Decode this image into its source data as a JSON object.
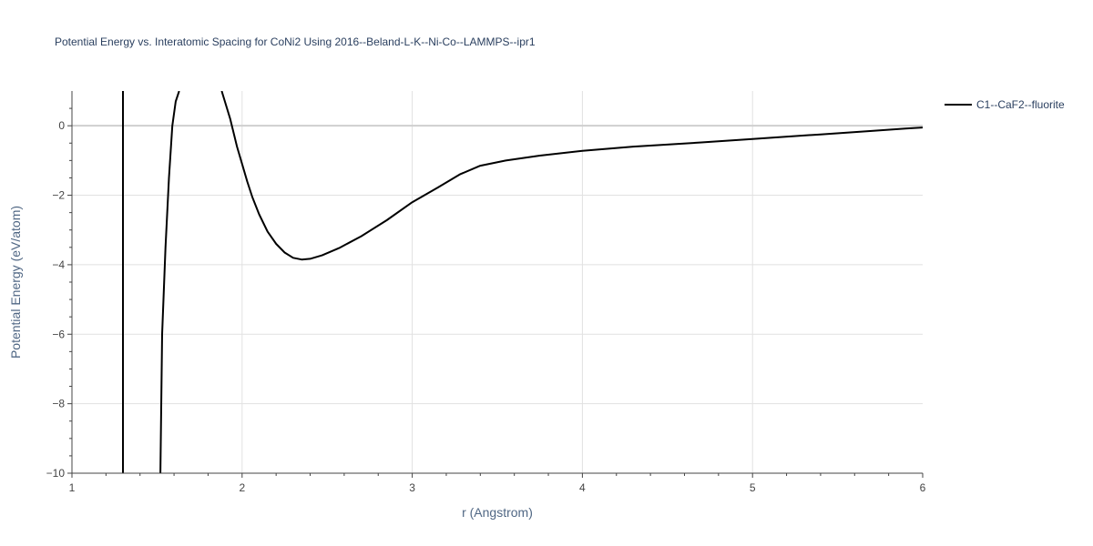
{
  "chart_data": {
    "type": "line",
    "title": "Potential Energy vs. Interatomic Spacing for CoNi2 Using 2016--Beland-L-K--Ni-Co--LAMMPS--ipr1",
    "xlabel": "r (Angstrom)",
    "ylabel": "Potential Energy (eV/atom)",
    "xlim": [
      1,
      6
    ],
    "ylim": [
      -10,
      1
    ],
    "x_ticks": [
      1,
      2,
      3,
      4,
      5,
      6
    ],
    "y_ticks": [
      0,
      -2,
      -4,
      -6,
      -8,
      -10
    ],
    "x_tick_labels": [
      "1",
      "2",
      "3",
      "4",
      "5",
      "6"
    ],
    "y_tick_labels": [
      "0",
      "−2",
      "−4",
      "−6",
      "−8",
      "−10"
    ],
    "grid": true,
    "legend_position": "top-right",
    "series": [
      {
        "name": "C1--CaF2--fluorite",
        "color": "#000000",
        "branches": [
          {
            "x": [
              1.3,
              1.3
            ],
            "y": [
              -10,
              1
            ]
          },
          {
            "x": [
              1.52,
              1.53,
              1.55,
              1.57,
              1.59,
              1.61,
              1.63
            ],
            "y": [
              -10,
              -6.0,
              -3.5,
              -1.5,
              0.0,
              0.7,
              1
            ]
          },
          {
            "x": [
              1.88,
              1.93,
              1.97,
              2.0,
              2.03,
              2.06,
              2.1,
              2.15,
              2.2,
              2.25,
              2.3,
              2.35,
              2.4,
              2.47,
              2.57,
              2.7,
              2.85,
              3.0,
              3.15,
              3.28,
              3.4,
              3.55,
              3.75,
              4.0,
              4.3,
              4.7,
              5.0,
              5.4,
              5.7,
              5.9,
              6.0
            ],
            "y": [
              1,
              0.2,
              -0.6,
              -1.1,
              -1.6,
              -2.05,
              -2.55,
              -3.05,
              -3.4,
              -3.65,
              -3.8,
              -3.85,
              -3.83,
              -3.73,
              -3.52,
              -3.18,
              -2.72,
              -2.2,
              -1.78,
              -1.4,
              -1.15,
              -1.0,
              -0.86,
              -0.72,
              -0.6,
              -0.48,
              -0.38,
              -0.25,
              -0.15,
              -0.08,
              -0.05
            ]
          }
        ]
      }
    ]
  }
}
